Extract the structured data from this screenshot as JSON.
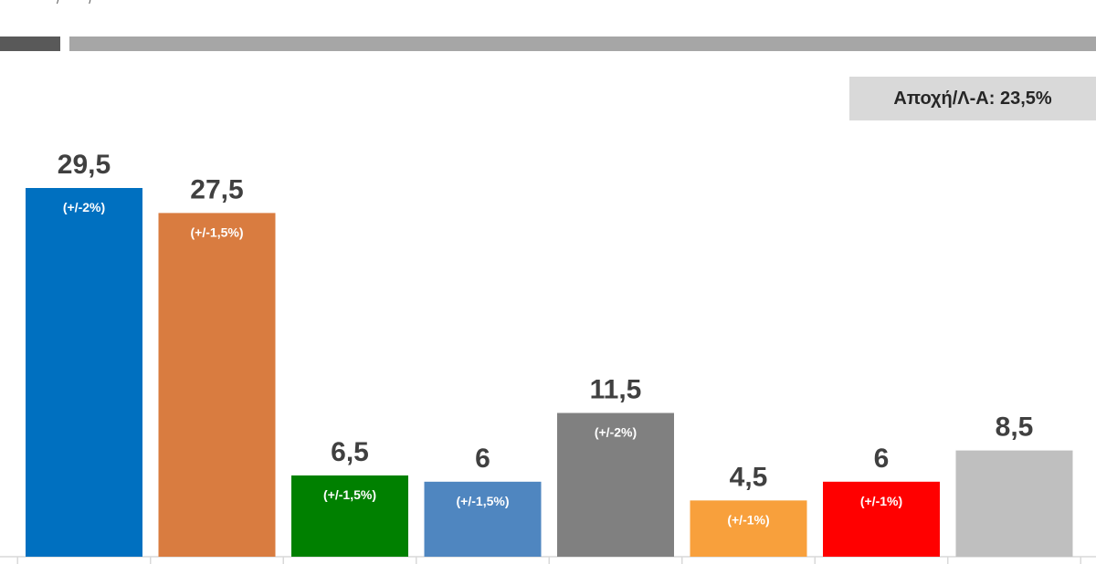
{
  "header": {
    "top_fragment": "/ /"
  },
  "abstention": {
    "text": "Αποχή/Λ-Α: 23,5%"
  },
  "chart_data": {
    "type": "bar",
    "ylim": [
      0,
      30
    ],
    "grid": false,
    "values": [
      29.5,
      27.5,
      6.5,
      6,
      11.5,
      4.5,
      6,
      8.5
    ],
    "value_labels": [
      "29,5",
      "27,5",
      "6,5",
      "6",
      "11,5",
      "4,5",
      "6",
      "8,5"
    ],
    "margins": [
      "(+/-2%)",
      "(+/-1,5%)",
      "(+/-1,5%)",
      "(+/-1,5%)",
      "(+/-2%)",
      "(+/-1%)",
      "(+/-1%)",
      ""
    ],
    "colors": [
      "#0070c0",
      "#d97c40",
      "#008000",
      "#4f86c0",
      "#808080",
      "#f8a03c",
      "#ff0000",
      "#bfbfbf"
    ]
  }
}
